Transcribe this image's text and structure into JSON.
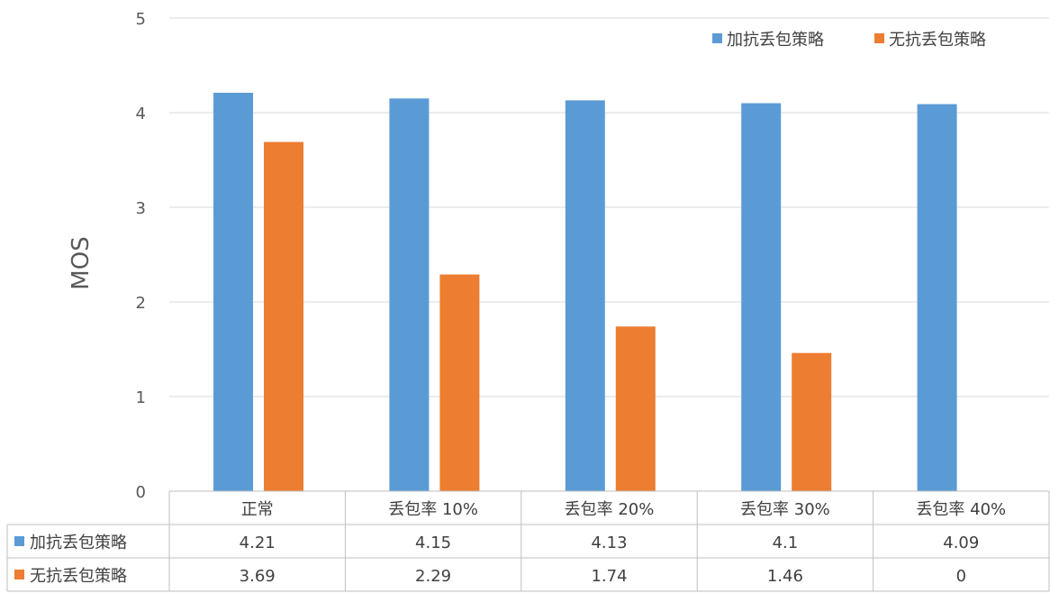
{
  "chart_data": {
    "type": "bar",
    "title": "",
    "xlabel": "",
    "ylabel": "MOS",
    "ylim": [
      0,
      5
    ],
    "yticks": [
      "0",
      "1",
      "2",
      "3",
      "4",
      "5"
    ],
    "categories": [
      "正常",
      "丢包率 10%",
      "丢包率 20%",
      "丢包率 30%",
      "丢包率 40%"
    ],
    "series": [
      {
        "name": "加抗丢包策略",
        "color": "#5B9BD5",
        "values": [
          4.21,
          4.15,
          4.13,
          4.1,
          4.09
        ],
        "labels": [
          "4.21",
          "4.15",
          "4.13",
          "4.1",
          "4.09"
        ]
      },
      {
        "name": "无抗丢包策略",
        "color": "#ED7D31",
        "values": [
          3.69,
          2.29,
          1.74,
          1.46,
          0
        ],
        "labels": [
          "3.69",
          "2.29",
          "1.74",
          "1.46",
          "0"
        ]
      }
    ],
    "grid": true,
    "legend": "top-right",
    "data_table": true
  }
}
